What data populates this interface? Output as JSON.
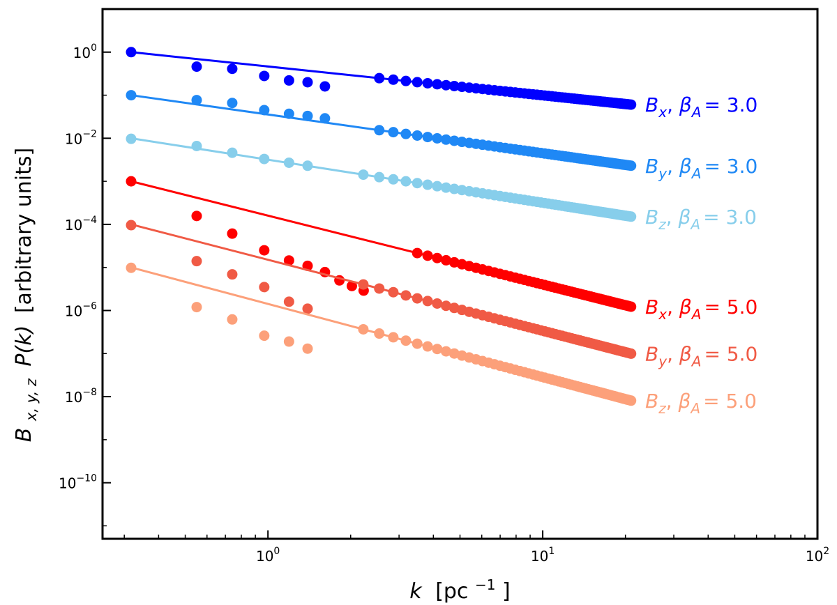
{
  "chart_data": {
    "type": "scatter",
    "xscale": "log",
    "yscale": "log",
    "xlim": [
      0.25,
      100
    ],
    "ylim": [
      5e-12,
      10
    ],
    "xlabel": {
      "symbol": "k",
      "unit": "[pc",
      "exp": "−1",
      "close": "]"
    },
    "ylabel": {
      "symbol": "B",
      "sub": "x, y, z",
      "func": "P(k)",
      "units": "[arbitrary units]"
    },
    "xticks": [
      {
        "value": 1,
        "base": "10",
        "exp": "0"
      },
      {
        "value": 10,
        "base": "10",
        "exp": "1"
      },
      {
        "value": 100,
        "base": "10",
        "exp": "2"
      }
    ],
    "yticks": [
      {
        "value": 1,
        "base": "10",
        "exp": "0"
      },
      {
        "value": 0.01,
        "base": "10",
        "exp": "−2"
      },
      {
        "value": 0.0001,
        "base": "10",
        "exp": "−4"
      },
      {
        "value": 1e-06,
        "base": "10",
        "exp": "−6"
      },
      {
        "value": 1e-08,
        "base": "10",
        "exp": "−8"
      },
      {
        "value": 1e-10,
        "base": "10",
        "exp": "−10"
      }
    ],
    "k_min": 0.3177,
    "k_max": 20.98,
    "n_points": 66,
    "series": [
      {
        "name": "Bx, βA = 3.0",
        "component": "x",
        "beta_label": "3.0",
        "beta": 0.67,
        "amplitude": 1.0,
        "color": "#0000ff",
        "low_k_points": [
          [
            0.3177,
            1.0
          ],
          [
            0.5503,
            0.46
          ],
          [
            0.7413,
            0.41
          ],
          [
            0.9693,
            0.28
          ],
          [
            1.193,
            0.22
          ],
          [
            1.394,
            0.2
          ],
          [
            1.612,
            0.16
          ]
        ]
      },
      {
        "name": "By, βA = 3.0",
        "component": "y",
        "beta_label": "3.0",
        "beta": 0.9,
        "amplitude": 0.1,
        "color": "#1f88f5",
        "low_k_points": [
          [
            0.3177,
            0.1
          ],
          [
            0.5503,
            0.077
          ],
          [
            0.7413,
            0.066
          ],
          [
            0.9693,
            0.045
          ],
          [
            1.193,
            0.037
          ],
          [
            1.394,
            0.033
          ],
          [
            1.612,
            0.029
          ]
        ]
      },
      {
        "name": "Bz, βA = 3.0",
        "component": "z",
        "beta_label": "3.0",
        "beta": 1.0,
        "amplitude": 0.01,
        "color": "#87ceeb",
        "low_k_points": [
          [
            0.3177,
            0.0097
          ],
          [
            0.5503,
            0.0066
          ],
          [
            0.7413,
            0.0046
          ],
          [
            0.9693,
            0.0033
          ],
          [
            1.193,
            0.0027
          ],
          [
            1.394,
            0.0023
          ]
        ]
      },
      {
        "name": "Bx, βA = 5.0",
        "component": "x",
        "beta_label": "5.0",
        "beta": 1.6,
        "amplitude": 0.001,
        "color": "#ff0000",
        "low_k_points": [
          [
            0.3177,
            0.001
          ],
          [
            0.5503,
            0.000157
          ],
          [
            0.7413,
            6.1e-05
          ],
          [
            0.9693,
            2.5e-05
          ],
          [
            1.193,
            1.45e-05
          ],
          [
            1.394,
            1.09e-05
          ],
          [
            1.612,
            7.8e-06
          ],
          [
            1.82,
            5e-06
          ],
          [
            2.02,
            3.7e-06
          ],
          [
            2.23,
            2.9e-06
          ]
        ]
      },
      {
        "name": "By, βA = 5.0",
        "component": "y",
        "beta_label": "5.0",
        "beta": 1.65,
        "amplitude": 0.0001,
        "color": "#f05a45",
        "low_k_points": [
          [
            0.3177,
            9.6e-05
          ],
          [
            0.5503,
            1.4e-05
          ],
          [
            0.7413,
            6.9e-06
          ],
          [
            0.9693,
            3.5e-06
          ],
          [
            1.193,
            1.6e-06
          ],
          [
            1.394,
            1.1e-06
          ]
        ]
      },
      {
        "name": "Bz, βA = 5.0",
        "component": "z",
        "beta_label": "5.0",
        "beta": 1.7,
        "amplitude": 1e-05,
        "color": "#fca07a",
        "low_k_points": [
          [
            0.3177,
            9.8e-06
          ],
          [
            0.5503,
            1.2e-06
          ],
          [
            0.7413,
            6.2e-07
          ],
          [
            0.9693,
            2.6e-07
          ],
          [
            1.193,
            1.9e-07
          ],
          [
            1.394,
            1.3e-07
          ]
        ]
      }
    ]
  }
}
